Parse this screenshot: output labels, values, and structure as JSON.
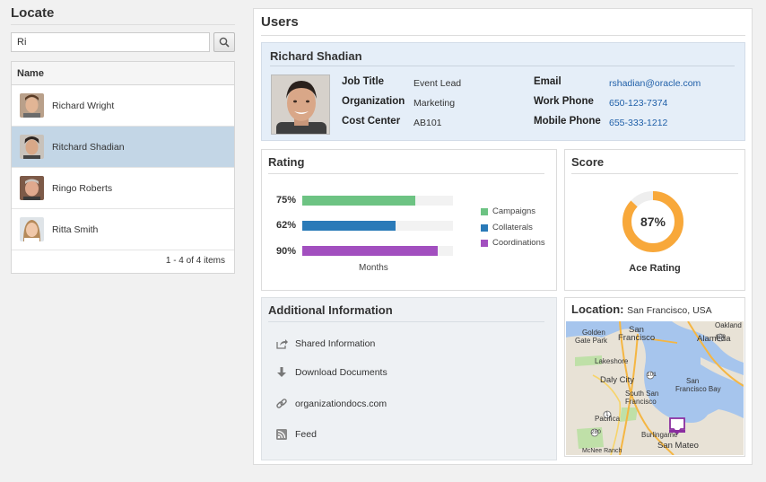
{
  "locate": {
    "title": "Locate",
    "search_value": "Ri",
    "column_header": "Name",
    "rows": [
      {
        "name": "Richard Wright"
      },
      {
        "name": "Ritchard Shadian"
      },
      {
        "name": "Ringo Roberts"
      },
      {
        "name": "Ritta Smith"
      }
    ],
    "pagination": "1 - 4 of 4 items"
  },
  "users": {
    "title": "Users",
    "selected": {
      "name": "Richard Shadian",
      "job_title_label": "Job Title",
      "job_title": "Event Lead",
      "organization_label": "Organization",
      "organization": "Marketing",
      "cost_center_label": "Cost Center",
      "cost_center": "AB101",
      "email_label": "Email",
      "email": "rshadian@oracle.com",
      "work_phone_label": "Work Phone",
      "work_phone": "650-123-7374",
      "mobile_phone_label": "Mobile Phone",
      "mobile_phone": "655-333-1212"
    }
  },
  "rating": {
    "title": "Rating",
    "xlabel": "Months"
  },
  "chart_data": {
    "type": "bar",
    "orientation": "horizontal",
    "series": [
      {
        "name": "Campaigns",
        "value": 75,
        "label": "75%",
        "color": "#6dc383"
      },
      {
        "name": "Collaterals",
        "value": 62,
        "label": "62%",
        "color": "#2a7ab8"
      },
      {
        "name": "Coordinations",
        "value": 90,
        "label": "90%",
        "color": "#a24fbf"
      }
    ],
    "xlim": [
      0,
      100
    ],
    "xlabel": "Months",
    "legend": "right"
  },
  "score": {
    "title": "Score",
    "value": 87,
    "value_label": "87%",
    "caption": "Ace Rating",
    "color": "#f8a83a"
  },
  "additional": {
    "title": "Additional Information",
    "items": [
      {
        "label": "Shared Information",
        "icon": "share-icon"
      },
      {
        "label": "Download Documents",
        "icon": "download-icon"
      },
      {
        "label": "organizationdocs.com",
        "icon": "link-icon"
      },
      {
        "label": "Feed",
        "icon": "rss-icon"
      }
    ]
  },
  "location": {
    "title": "Location:",
    "place": "San Francisco, USA",
    "map_labels": {
      "golden_gate": "Golden",
      "golden_gate2": "Gate Park",
      "san": "San",
      "francisco": "Francisco",
      "alameda": "Alameda",
      "oakland": "Oakland",
      "lakeshore": "Lakeshore",
      "daly_city": "Daly City",
      "south_sf": "South San",
      "south_sf2": "Francisco",
      "sf_bay": "San",
      "sf_bay2": "Francisco Bay",
      "pacifica": "Pacifica",
      "burlingame": "Burlingame",
      "san_mateo": "San Mateo",
      "mcnee": "McNee Ranch",
      "hwy101": "101",
      "hwy280": "280",
      "hwy880": "880",
      "hwy1": "1"
    }
  }
}
